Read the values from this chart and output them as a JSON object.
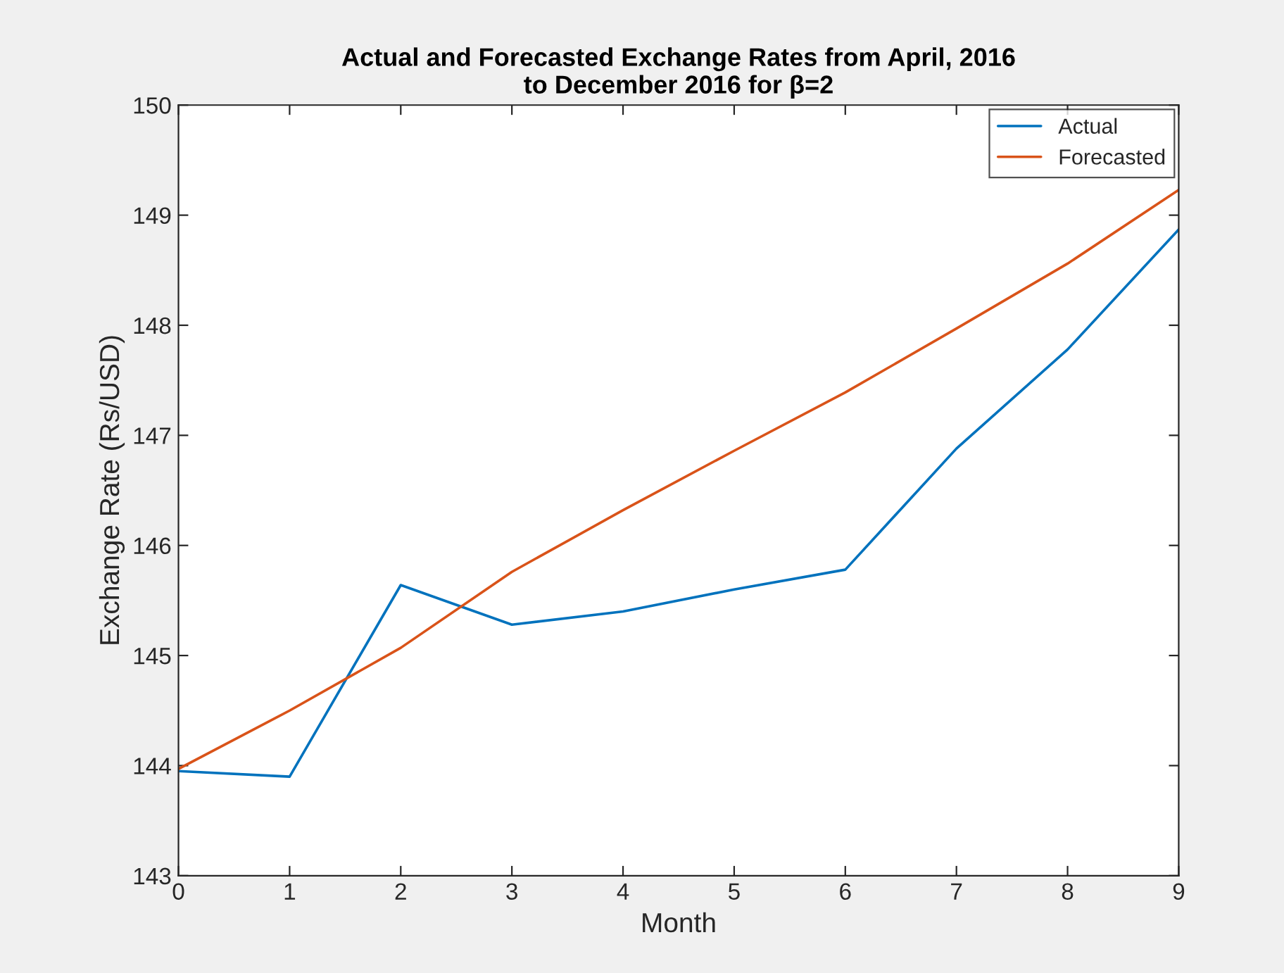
{
  "chart_data": {
    "type": "line",
    "title": "Actual and Forecasted Exchange Rates from April, 2016\nto December 2016 for β=2",
    "xlabel": "Month",
    "ylabel": "Exchange Rate (Rs/USD)",
    "x": [
      0,
      1,
      2,
      3,
      4,
      5,
      6,
      7,
      8,
      9
    ],
    "series": [
      {
        "name": "Actual",
        "color": "#0072bd",
        "values": [
          143.95,
          143.9,
          145.64,
          145.28,
          145.4,
          145.6,
          145.78,
          146.88,
          147.78,
          148.87
        ]
      },
      {
        "name": "Forecasted",
        "color": "#d95319",
        "values": [
          143.97,
          144.5,
          145.07,
          145.76,
          146.32,
          146.86,
          147.39,
          147.97,
          148.56,
          149.23
        ]
      }
    ],
    "xlim": [
      0,
      9
    ],
    "ylim": [
      143,
      150
    ],
    "xticks": [
      0,
      1,
      2,
      3,
      4,
      5,
      6,
      7,
      8,
      9
    ],
    "yticks": [
      143,
      144,
      145,
      146,
      147,
      148,
      149,
      150
    ],
    "grid": false,
    "legend": "top right",
    "marker": "none",
    "line_style": "solid"
  }
}
